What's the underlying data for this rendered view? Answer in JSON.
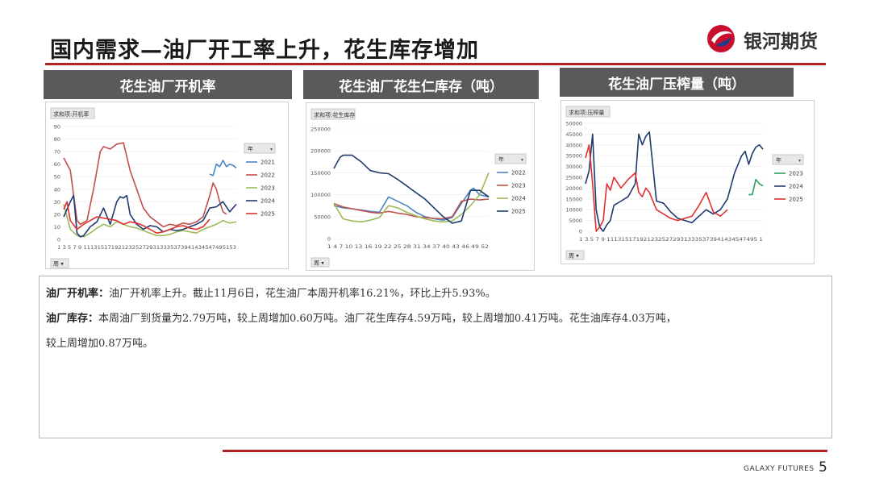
{
  "header": {
    "title": "国内需求—油厂开工率上升，花生库存增加",
    "logo_text": "银河期货"
  },
  "footer": {
    "brand": "GALAXY FUTURES",
    "page": "5"
  },
  "colors": {
    "accent": "#b22222",
    "panel_header": "#5a5a5a",
    "y2021": "#4a86c8",
    "y2022": "#c0504d",
    "y2023": "#9bbb59",
    "y2024": "#1f3a6e",
    "y2025": "#e03030"
  },
  "notes": {
    "line1_label": "油厂开机率：",
    "line1_text": "油厂开机率上升。截止11月6日，花生油厂本周开机率16.21%，环比上升5.93%。",
    "line2_label": "油厂库存：",
    "line2_text": "本周油厂到货量为2.79万吨，较上周增加0.60万吨。油厂花生库存4.59万吨，较上周增加0.41万吨。花生油库存4.03万吨，",
    "line3_text": "较上周增加0.87万吨。"
  },
  "chart_data": [
    {
      "type": "line",
      "panel_title": "花生油厂开机率",
      "field_label": "求和项:开机率",
      "legend_title": "年",
      "filter_label": "周",
      "yticks": [
        "90",
        "80",
        "70",
        "60",
        "50",
        "40",
        "30",
        "20",
        "10",
        "0"
      ],
      "ylim": [
        0,
        90
      ],
      "xlim": [
        1,
        53
      ],
      "x_tick_text": "1 3 5 7 9 11131517192123252729313335373941434547495153",
      "series": [
        {
          "name": "2021",
          "color": "#4a86c8",
          "x": [
            45,
            46,
            47,
            48,
            49,
            50,
            51,
            52,
            53
          ],
          "y": [
            52,
            51,
            60,
            58,
            63,
            58,
            60,
            59,
            57
          ]
        },
        {
          "name": "2022",
          "color": "#c0504d",
          "x": [
            1,
            3,
            5,
            6,
            8,
            10,
            12,
            13,
            15,
            17,
            19,
            21,
            23,
            25,
            27,
            29,
            31,
            33,
            35,
            37,
            39,
            41,
            43,
            45,
            46,
            47,
            48,
            49,
            50
          ],
          "y": [
            65,
            55,
            15,
            12,
            15,
            40,
            70,
            74,
            72,
            76,
            77,
            55,
            40,
            25,
            18,
            14,
            10,
            12,
            11,
            13,
            12,
            14,
            18,
            35,
            45,
            40,
            30,
            22,
            20
          ]
        },
        {
          "name": "2023",
          "color": "#9bbb59",
          "x": [
            1,
            3,
            5,
            7,
            9,
            11,
            13,
            15,
            17,
            19,
            21,
            23,
            25,
            27,
            29,
            31,
            33,
            35,
            37,
            39,
            41,
            43,
            45,
            47,
            49,
            51,
            53
          ],
          "y": [
            28,
            8,
            3,
            2,
            5,
            9,
            12,
            10,
            14,
            12,
            10,
            9,
            7,
            5,
            3,
            3,
            4,
            6,
            7,
            6,
            5,
            8,
            10,
            12,
            15,
            13,
            14
          ]
        },
        {
          "name": "2024",
          "color": "#1f3a6e",
          "x": [
            1,
            3,
            4,
            5,
            6,
            7,
            9,
            11,
            13,
            15,
            17,
            18,
            19,
            20,
            21,
            23,
            25,
            27,
            29,
            31,
            33,
            35,
            37,
            39,
            41,
            43,
            45,
            47,
            49,
            51,
            53
          ],
          "y": [
            18,
            30,
            35,
            5,
            2,
            3,
            10,
            14,
            25,
            12,
            30,
            34,
            33,
            35,
            20,
            12,
            8,
            11,
            10,
            6,
            8,
            7,
            8,
            10,
            12,
            15,
            25,
            26,
            30,
            22,
            28
          ]
        },
        {
          "name": "2025",
          "color": "#e03030",
          "x": [
            1,
            2,
            3,
            5,
            7,
            9,
            11,
            13,
            15,
            17,
            19,
            21,
            23,
            25,
            27,
            29,
            31,
            33,
            35,
            37,
            39,
            41,
            43,
            45
          ],
          "y": [
            24,
            30,
            15,
            8,
            12,
            15,
            18,
            17,
            16,
            15,
            12,
            14,
            13,
            11,
            8,
            5,
            6,
            8,
            10,
            11,
            9,
            8,
            10,
            16
          ]
        }
      ]
    },
    {
      "type": "line",
      "panel_title": "花生油厂花生仁库存（吨）",
      "field_label": "求和项:花生库存",
      "legend_title": "年",
      "filter_label": "周",
      "yticks": [
        "250000",
        "200000",
        "150000",
        "100000",
        "50000",
        "0"
      ],
      "ylim": [
        0,
        250000
      ],
      "xlim": [
        1,
        52
      ],
      "x_tick_text": "1 4 7 10 13 16 19 22 25 28 31 34 37 40 43 46 49 52",
      "series": [
        {
          "name": "2022",
          "color": "#4a86c8",
          "x": [
            1,
            4,
            7,
            10,
            13,
            16,
            19,
            22,
            25,
            28,
            31,
            34,
            37,
            40,
            43,
            46,
            47,
            49,
            52
          ],
          "y": [
            75000,
            70000,
            68000,
            65000,
            62000,
            60000,
            95000,
            85000,
            75000,
            60000,
            50000,
            45000,
            42000,
            48000,
            80000,
            110000,
            115000,
            100000,
            95000
          ]
        },
        {
          "name": "2023",
          "color": "#c0504d",
          "x": [
            1,
            4,
            7,
            10,
            13,
            16,
            19,
            22,
            25,
            28,
            31,
            34,
            37,
            40,
            43,
            46,
            49,
            52
          ],
          "y": [
            80000,
            72000,
            68000,
            64000,
            60000,
            58000,
            62000,
            58000,
            55000,
            50000,
            48000,
            46000,
            45000,
            50000,
            85000,
            90000,
            88000,
            90000
          ]
        },
        {
          "name": "2024",
          "color": "#9bbb59",
          "x": [
            1,
            4,
            7,
            10,
            13,
            16,
            19,
            22,
            25,
            28,
            31,
            34,
            37,
            40,
            43,
            46,
            49,
            52
          ],
          "y": [
            80000,
            45000,
            40000,
            38000,
            42000,
            48000,
            75000,
            70000,
            60000,
            52000,
            45000,
            40000,
            38000,
            40000,
            55000,
            75000,
            100000,
            150000
          ]
        },
        {
          "name": "2025",
          "color": "#1f3a6e",
          "x": [
            1,
            3,
            4,
            7,
            10,
            13,
            16,
            19,
            22,
            25,
            28,
            31,
            34,
            37,
            40,
            43,
            46,
            49,
            52
          ],
          "y": [
            160000,
            185000,
            190000,
            190000,
            175000,
            155000,
            150000,
            148000,
            135000,
            120000,
            105000,
            90000,
            70000,
            50000,
            35000,
            40000,
            110000,
            110000,
            95000
          ]
        }
      ]
    },
    {
      "type": "line",
      "panel_title": "花生油厂压榨量（吨）",
      "field_label": "求和项:压榨量",
      "legend_title": "年",
      "filter_label": "周",
      "yticks": [
        "50000",
        "45000",
        "40000",
        "35000",
        "30000",
        "25000",
        "20000",
        "15000",
        "10000",
        "5000",
        "0"
      ],
      "ylim": [
        0,
        50000
      ],
      "xlim": [
        1,
        51
      ],
      "x_tick_text": "1 3 5 7 9 11131517192123252729313335373941434547495 1",
      "series": [
        {
          "name": "2023",
          "color": "#2e9e5b",
          "x": [
            47,
            48,
            49,
            50,
            51
          ],
          "y": [
            17000,
            17000,
            24000,
            22000,
            21000
          ]
        },
        {
          "name": "2024",
          "color": "#1f3a6e",
          "x": [
            1,
            2,
            3,
            4,
            5,
            6,
            7,
            8,
            9,
            11,
            13,
            15,
            16,
            17,
            18,
            19,
            20,
            21,
            23,
            25,
            27,
            29,
            31,
            33,
            35,
            37,
            39,
            41,
            43,
            45,
            46,
            47,
            48,
            49,
            50,
            51
          ],
          "y": [
            22000,
            28000,
            45000,
            10000,
            2000,
            0,
            3000,
            5000,
            12000,
            14000,
            16000,
            22000,
            45000,
            40000,
            44000,
            46000,
            30000,
            14000,
            13000,
            9000,
            6000,
            5000,
            4000,
            7000,
            10000,
            8000,
            10000,
            15000,
            27000,
            35000,
            37000,
            31000,
            36000,
            39000,
            40000,
            38000
          ]
        },
        {
          "name": "2025",
          "color": "#e03030",
          "x": [
            1,
            2,
            3,
            4,
            5,
            6,
            7,
            8,
            9,
            11,
            13,
            15,
            16,
            17,
            18,
            19,
            21,
            23,
            25,
            27,
            29,
            31,
            33,
            35,
            37,
            39,
            41
          ],
          "y": [
            34000,
            40000,
            22000,
            0,
            2000,
            5000,
            22000,
            19000,
            25000,
            20000,
            24000,
            27000,
            18000,
            16000,
            20000,
            18000,
            10000,
            8000,
            6000,
            5000,
            6000,
            7000,
            12000,
            18000,
            9000,
            7000,
            10000
          ]
        }
      ]
    }
  ]
}
